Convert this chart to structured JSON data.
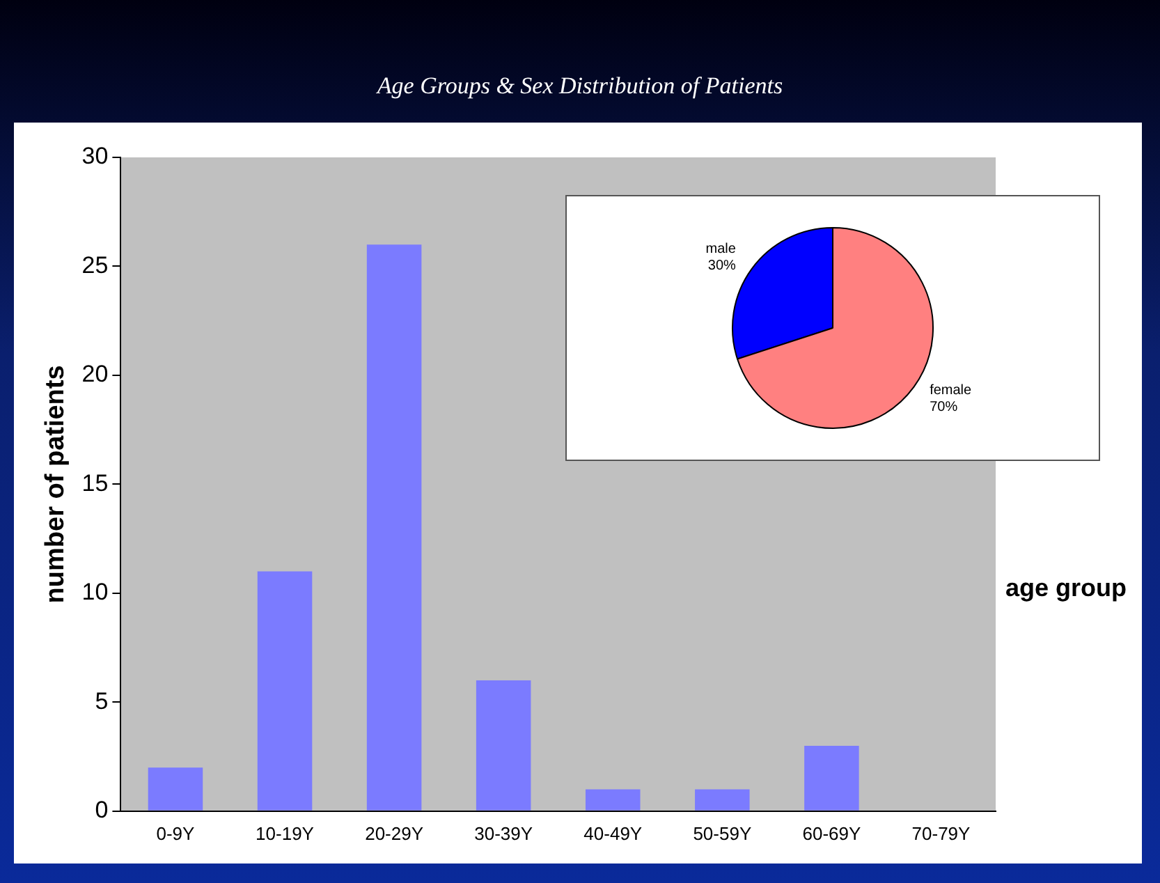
{
  "chart_data": [
    {
      "type": "bar",
      "title": "Age Groups & Sex Distribution of Patients",
      "ylabel": "number of patients",
      "xlabel": "age group",
      "categories": [
        "0-9Y",
        "10-19Y",
        "20-29Y",
        "30-39Y",
        "40-49Y",
        "50-59Y",
        "60-69Y",
        "70-79Y"
      ],
      "values": [
        2,
        11,
        26,
        6,
        1,
        1,
        3,
        0
      ],
      "color": "#7b7bff",
      "ylim": [
        0,
        30
      ],
      "yticks": [
        0,
        5,
        10,
        15,
        20,
        25,
        30
      ],
      "grid": false,
      "legend": false
    },
    {
      "type": "pie",
      "categories": [
        "male",
        "female"
      ],
      "values": [
        30,
        70
      ],
      "colors": [
        "#0000ff",
        "#ff8080"
      ],
      "value_labels": [
        "30%",
        "70%"
      ],
      "legend": false
    }
  ]
}
